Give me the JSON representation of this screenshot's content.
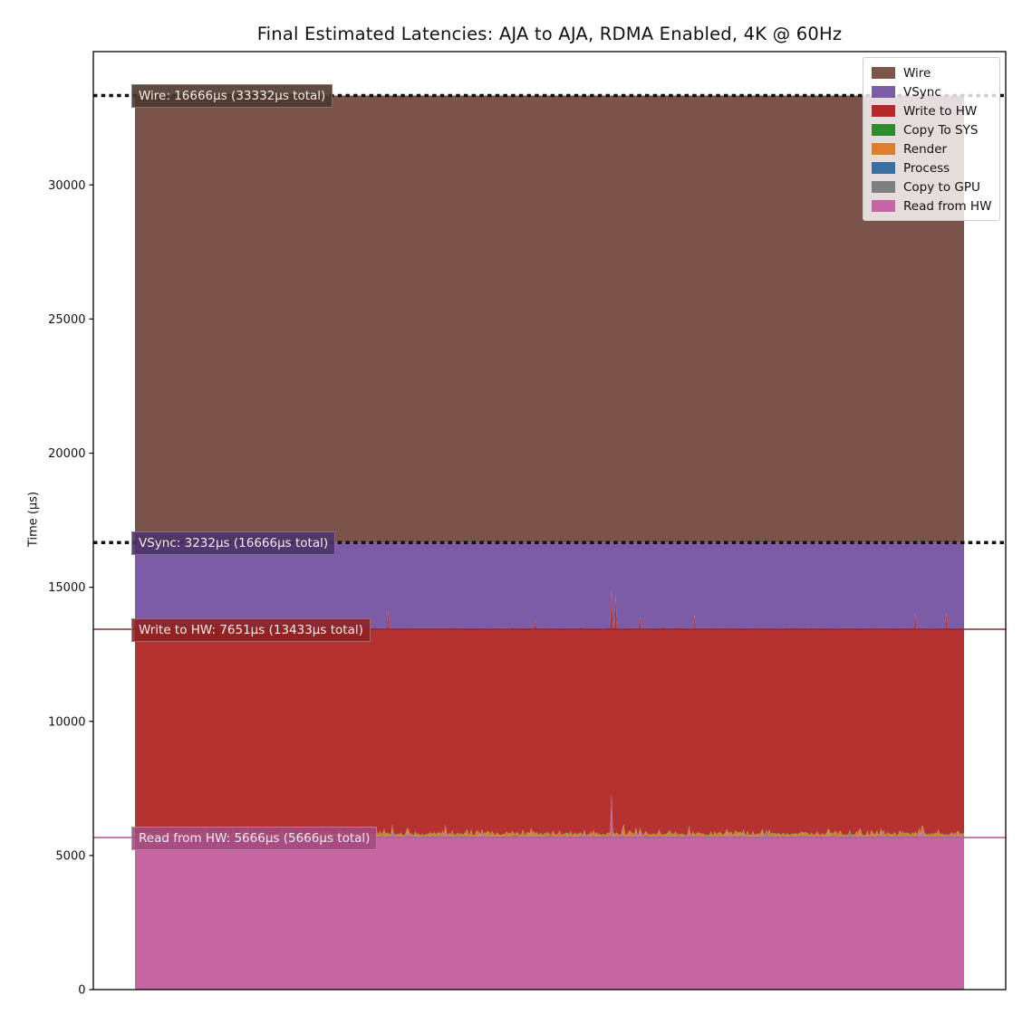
{
  "figure": {
    "background": "#ffffff",
    "border_color": "#000000"
  },
  "chart_data": {
    "type": "area",
    "title": "Final Estimated Latencies: AJA to AJA, RDMA Enabled, 4K @ 60Hz",
    "xlabel": "",
    "ylabel": "Time (µs)",
    "ylim": [
      0,
      34960
    ],
    "yticks": [
      0,
      5000,
      10000,
      15000,
      20000,
      25000,
      30000
    ],
    "x_axis_ticks": [],
    "grid": false,
    "legend_position": "upper right",
    "series": [
      {
        "name": "Read from HW",
        "color": "#c366a2",
        "stage_us": 5666,
        "cumulative_us": 5666
      },
      {
        "name": "Copy to GPU",
        "color": "#7f7f7f",
        "stage_us": 18,
        "cumulative_us": 5684
      },
      {
        "name": "Process",
        "color": "#39709f",
        "stage_us": 22,
        "cumulative_us": 5706
      },
      {
        "name": "Render",
        "color": "#dd7e2e",
        "stage_us": 58,
        "cumulative_us": 5764
      },
      {
        "name": "Copy To SYS",
        "color": "#2e8b2e",
        "stage_us": 18,
        "cumulative_us": 5782
      },
      {
        "name": "Write to HW",
        "color": "#b53231",
        "stage_us": 7651,
        "cumulative_us": 13433
      },
      {
        "name": "VSync",
        "color": "#7d5ca7",
        "stage_us": 3232,
        "cumulative_us": 16666
      },
      {
        "name": "Wire",
        "color": "#7a544a",
        "stage_us": 16666,
        "cumulative_us": 33332
      }
    ],
    "legend_entries": [
      {
        "label": "Wire",
        "color": "#7b544a"
      },
      {
        "label": "VSync",
        "color": "#7d5ca7"
      },
      {
        "label": "Write to HW",
        "color": "#b32a29"
      },
      {
        "label": "Copy To SYS",
        "color": "#2e8b2e"
      },
      {
        "label": "Render",
        "color": "#dd7e2e"
      },
      {
        "label": "Process",
        "color": "#39709f"
      },
      {
        "label": "Copy to GPU",
        "color": "#7f7f7f"
      },
      {
        "label": "Read from HW",
        "color": "#c665a4"
      }
    ],
    "reference_lines": [
      {
        "value_us": 33332,
        "style": "dashed",
        "color": "#111111",
        "width": 3.5
      },
      {
        "value_us": 16666,
        "style": "dashed",
        "color": "#111111",
        "width": 3.5
      },
      {
        "value_us": 13433,
        "style": "solid",
        "color": "#8e2a2a",
        "width": 1.6
      },
      {
        "value_us": 5666,
        "style": "solid",
        "color": "#b55f9d",
        "width": 1.6
      }
    ],
    "annotations": [
      {
        "id": "wire",
        "label": "Wire: 16666µs (33332µs total)",
        "value_us": 33332,
        "bg": "rgba(77,55,47,0.90)"
      },
      {
        "id": "vsync",
        "label": "VSync: 3232µs (16666µs total)",
        "value_us": 16666,
        "bg": "rgba(76,51,105,0.90)"
      },
      {
        "id": "write-to-hw",
        "label": "Write to HW: 7651µs (13433µs total)",
        "value_us": 13433,
        "bg": "rgba(142,33,33,0.88)"
      },
      {
        "id": "read-from-hw",
        "label": "Read from HW: 5666µs (5666µs total)",
        "value_us": 5666,
        "bg": "rgba(164,73,127,0.88)"
      }
    ],
    "noise_hint_us": {
      "read_top": 90,
      "red_top": 140,
      "render_band_min": 35,
      "render_band_max": 285
    },
    "spikes": [
      {
        "layer": "Write to HW",
        "x_frac": 0.574,
        "top_us": 14900
      },
      {
        "layer": "Write to HW",
        "x_frac": 0.58,
        "top_us": 14720
      },
      {
        "layer": "Write to HW",
        "x_frac": 0.305,
        "top_us": 14150
      },
      {
        "layer": "Write to HW",
        "x_frac": 0.482,
        "top_us": 13820
      },
      {
        "layer": "Write to HW",
        "x_frac": 0.61,
        "top_us": 13900
      },
      {
        "layer": "Write to HW",
        "x_frac": 0.675,
        "top_us": 13950
      },
      {
        "layer": "Write to HW",
        "x_frac": 0.941,
        "top_us": 14050
      },
      {
        "layer": "Write to HW",
        "x_frac": 0.979,
        "top_us": 14060
      },
      {
        "layer": "Read from HW",
        "x_frac": 0.575,
        "top_us": 7290
      },
      {
        "layer": "Render",
        "x_frac": 0.589,
        "top_us": 6180
      },
      {
        "layer": "Copy to GPU",
        "x_frac": 0.762,
        "top_us": 5960
      },
      {
        "layer": "Copy to GPU",
        "x_frac": 0.862,
        "top_us": 5950
      }
    ]
  }
}
